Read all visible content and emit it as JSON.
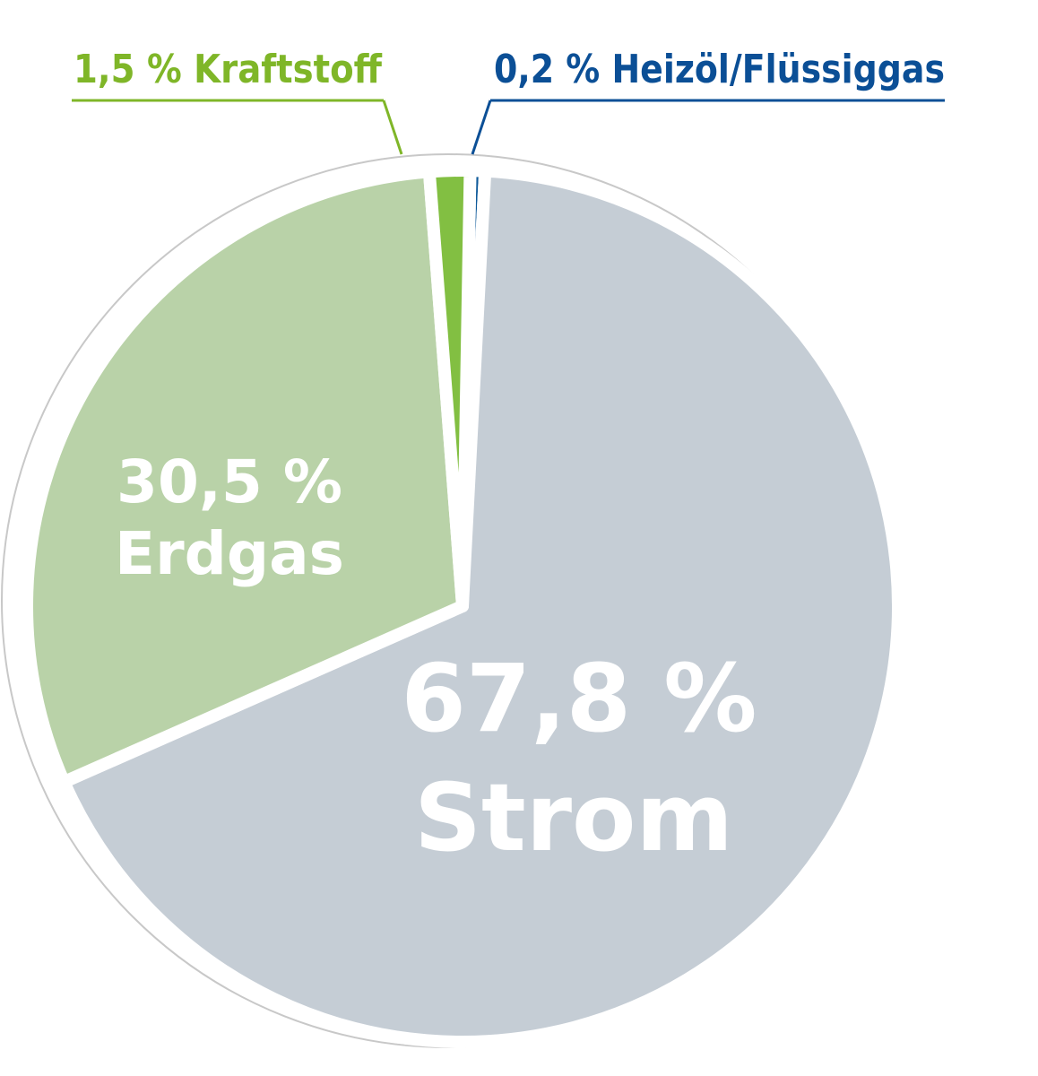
{
  "chart_data": {
    "type": "pie",
    "slices": [
      {
        "label": "Strom",
        "value": 67.8,
        "value_text": "67,8 %",
        "color": "#c5cdd5"
      },
      {
        "label": "Erdgas",
        "value": 30.5,
        "value_text": "30,5 %",
        "color": "#b9d2a8"
      },
      {
        "label": "Kraftstoff",
        "value": 1.5,
        "value_text": "1,5 %",
        "color": "#82bf42"
      },
      {
        "label": "Heizöl/Flüssiggas",
        "value": 0.2,
        "value_text": "0,2 %",
        "color": "#0f5a9a"
      }
    ],
    "callouts": [
      {
        "text": "1,5 % Kraftstoff",
        "color": "#7fb628"
      },
      {
        "text": "0,2 % Heizöl/Flüssiggas",
        "color": "#0b4f96"
      }
    ],
    "outline_color": "#c8c8c8",
    "separator_color": "#ffffff"
  }
}
